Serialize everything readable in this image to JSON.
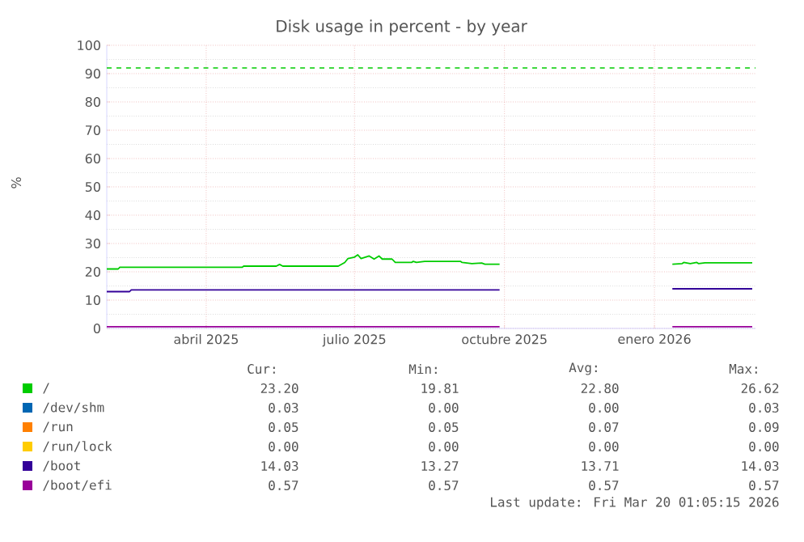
{
  "chart_data": {
    "type": "line",
    "title": "Disk usage in percent - by year",
    "ylabel": "%",
    "xlim": [
      "2025-02-14",
      "2026-03-19"
    ],
    "ylim": [
      0,
      100
    ],
    "xticks": [
      {
        "value": "2025-04-16",
        "label": "abril 2025"
      },
      {
        "value": "2025-07-16",
        "label": "julio 2025"
      },
      {
        "value": "2025-10-16",
        "label": "octubre 2025"
      },
      {
        "value": "2026-01-16",
        "label": "enero 2026"
      }
    ],
    "yticks": [
      0,
      10,
      20,
      30,
      40,
      50,
      60,
      70,
      80,
      90,
      100
    ],
    "grid": true,
    "legend": "bottom",
    "ref_lines": [
      {
        "axis": "y",
        "value": 92,
        "color": "#00cc00",
        "line_style": "dashed"
      }
    ],
    "series": [
      {
        "name": "/",
        "color": "#00cc00",
        "x": [
          "2025-02-14",
          "2025-02-21",
          "2025-02-22",
          "2025-05-08",
          "2025-05-09",
          "2025-05-29",
          "2025-05-31",
          "2025-06-02",
          "2025-07-06",
          "2025-07-10",
          "2025-07-12",
          "2025-07-16",
          "2025-07-18",
          "2025-07-20",
          "2025-07-25",
          "2025-07-28",
          "2025-07-31",
          "2025-08-02",
          "2025-08-08",
          "2025-08-10",
          "2025-08-20",
          "2025-08-21",
          "2025-08-23",
          "2025-08-28",
          "2025-09-19",
          "2025-09-20",
          "2025-09-26",
          "2025-10-02",
          "2025-10-04",
          "2025-10-13",
          "2025-10-14",
          "2026-01-27",
          "2026-02-02",
          "2026-02-03",
          "2026-02-07",
          "2026-02-11",
          "2026-02-12",
          "2026-02-16",
          "2026-03-17"
        ],
        "values": [
          21.0,
          21.0,
          21.6,
          21.6,
          22.0,
          22.0,
          22.6,
          22.0,
          22.0,
          23.3,
          24.7,
          25.2,
          26.0,
          24.7,
          25.6,
          24.5,
          25.6,
          24.5,
          24.5,
          23.3,
          23.3,
          23.7,
          23.3,
          23.7,
          23.7,
          23.3,
          22.9,
          23.1,
          22.7,
          22.7,
          null,
          22.7,
          22.9,
          23.3,
          22.9,
          23.3,
          22.9,
          23.2,
          23.2
        ]
      },
      {
        "name": "/dev/shm",
        "color": "#0066b3",
        "values": [
          null
        ]
      },
      {
        "name": "/run",
        "color": "#ff8000",
        "values": [
          null
        ]
      },
      {
        "name": "/run/lock",
        "color": "#ffcc00",
        "values": [
          null
        ]
      },
      {
        "name": "/boot",
        "color": "#330099",
        "x": [
          "2025-02-14",
          "2025-02-28",
          "2025-03-01",
          "2025-10-13",
          "2025-10-14",
          "2026-01-27",
          "2026-03-17"
        ],
        "values": [
          13.0,
          13.0,
          13.6,
          13.6,
          null,
          14.0,
          14.0
        ]
      },
      {
        "name": "/boot/efi",
        "color": "#990099",
        "x": [
          "2025-02-14",
          "2025-10-13",
          "2025-10-14",
          "2026-01-27",
          "2026-03-17"
        ],
        "values": [
          0.6,
          0.6,
          null,
          0.6,
          0.6
        ]
      }
    ],
    "annotations": [
      "Cur:",
      "Min:",
      "Avg:",
      "Max:",
      "23.20",
      "19.81",
      "22.80",
      "26.62",
      "0.03",
      "0.00",
      "0.00",
      "0.03",
      "0.05",
      "0.05",
      "0.07",
      "0.09",
      "0.00",
      "0.00",
      "0.00",
      "0.00",
      "14.03",
      "13.27",
      "13.71",
      "14.03",
      "0.57",
      "0.57",
      "0.57",
      "0.57",
      "Last update: Fri Mar 20 01:05:15 2026"
    ]
  }
}
